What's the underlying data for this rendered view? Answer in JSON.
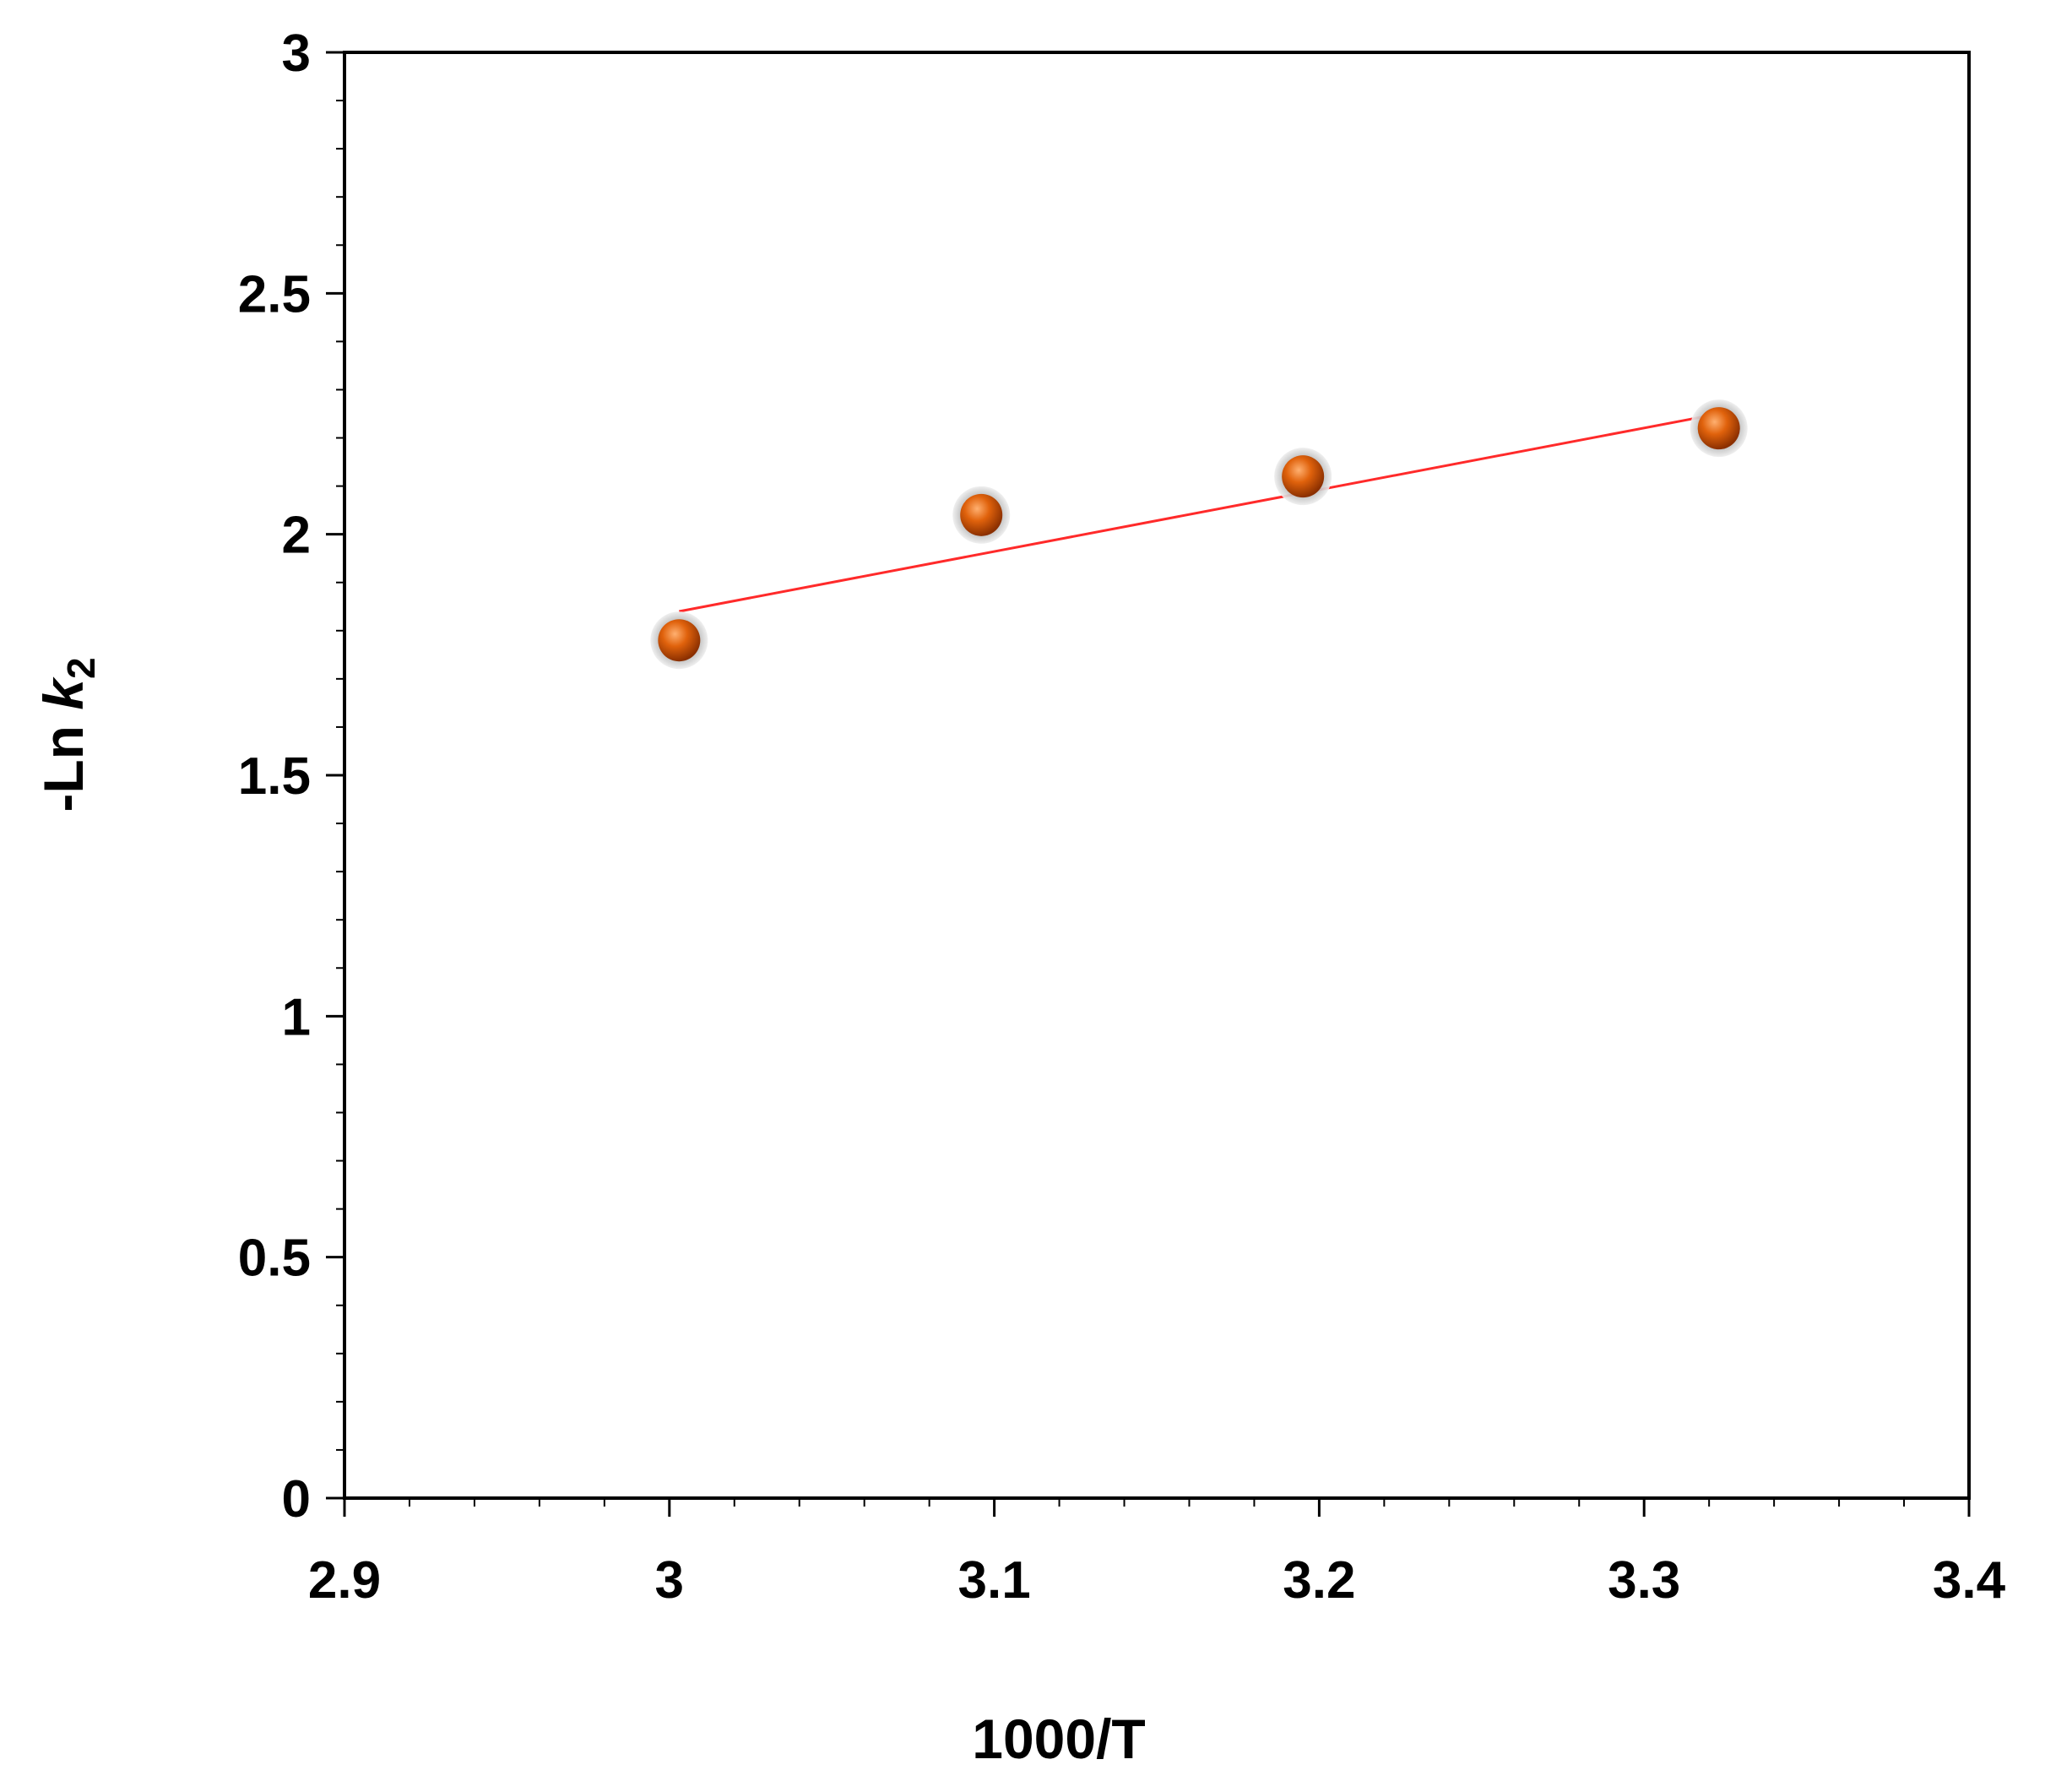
{
  "chart_data": {
    "type": "scatter",
    "xlabel": "1000/T",
    "ylabel": {
      "prefix": "-Ln ",
      "variable": "k",
      "subscript": "2"
    },
    "xlim": [
      2.9,
      3.4
    ],
    "ylim": [
      0,
      3
    ],
    "x_ticks": [
      "2.9",
      "3",
      "3.1",
      "3.2",
      "3.3",
      "3.4"
    ],
    "y_ticks": [
      "0",
      "0.5",
      "1",
      "1.5",
      "2",
      "2.5",
      "3"
    ],
    "grid": false,
    "legend": "none",
    "series": [
      {
        "x": [
          3.003,
          3.096,
          3.195,
          3.323
        ],
        "y": [
          1.78,
          2.04,
          2.12,
          2.22
        ],
        "marker_color": "#e0620c",
        "marker_edge": "#9a9a9a"
      }
    ],
    "trendline": {
      "x": [
        3.003,
        3.323
      ],
      "y": [
        1.84,
        2.25
      ],
      "color": "#ff2a2a"
    }
  }
}
